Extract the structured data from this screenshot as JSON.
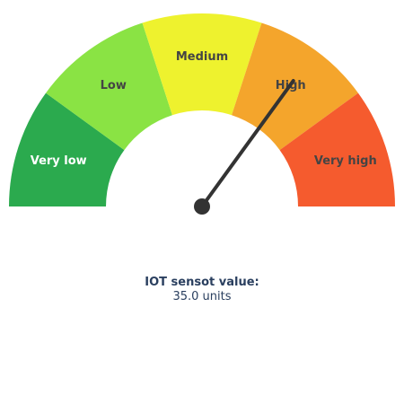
{
  "chart_data": {
    "type": "gauge",
    "range": [
      0,
      50
    ],
    "segments": [
      {
        "label": "Very low",
        "from": 0,
        "to": 10,
        "color": "#2baa4e",
        "text_color": "#ffffff"
      },
      {
        "label": "Low",
        "from": 10,
        "to": 20,
        "color": "#8ae344",
        "text_color": "#444444"
      },
      {
        "label": "Medium",
        "from": 20,
        "to": 30,
        "color": "#eef22e",
        "text_color": "#444444"
      },
      {
        "label": "High",
        "from": 30,
        "to": 40,
        "color": "#f4a52c",
        "text_color": "#444444"
      },
      {
        "label": "Very high",
        "from": 40,
        "to": 50,
        "color": "#f55b2e",
        "text_color": "#444444"
      }
    ],
    "value": 35.0,
    "needle_color": "#333333"
  },
  "readout": {
    "title": "IOT sensot value:",
    "value_text": "35.0 units"
  }
}
